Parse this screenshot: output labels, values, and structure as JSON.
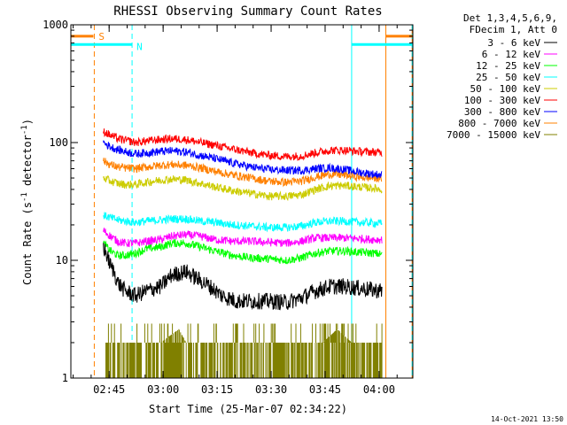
{
  "chart_data": {
    "type": "line",
    "title": "RHESSI Observing Summary Count Rates",
    "xlabel": "Start Time (25-Mar-07 02:34:22)",
    "ylabel": "Count Rate (s⁻¹ detector⁻¹)",
    "ylabel_parts": [
      "Count Rate (s",
      "-1",
      " detector",
      "-1",
      ")"
    ],
    "y_scale": "log",
    "ylim": [
      1,
      1000
    ],
    "xlim_minutes": [
      0,
      95
    ],
    "x_ticks": [
      {
        "minute": 10.63,
        "label": "02:45"
      },
      {
        "minute": 25.63,
        "label": "03:00"
      },
      {
        "minute": 40.63,
        "label": "03:15"
      },
      {
        "minute": 55.63,
        "label": "03:30"
      },
      {
        "minute": 70.63,
        "label": "03:45"
      },
      {
        "minute": 85.63,
        "label": "04:00"
      }
    ],
    "y_ticks": [
      {
        "value": 1,
        "label": "1"
      },
      {
        "value": 10,
        "label": "10"
      },
      {
        "value": 100,
        "label": "100"
      },
      {
        "value": 1000,
        "label": "1000"
      }
    ],
    "legend_header": [
      "Det 1,3,4,5,6,9,",
      "FDecim 1, Att 0"
    ],
    "series": [
      {
        "name": "3 - 6 keV",
        "color": "#000000",
        "points": [
          [
            9,
            13
          ],
          [
            10,
            11
          ],
          [
            11,
            9
          ],
          [
            12,
            8
          ],
          [
            13,
            6.5
          ],
          [
            15,
            5.5
          ],
          [
            18,
            5
          ],
          [
            21,
            5.5
          ],
          [
            25,
            6
          ],
          [
            28,
            7.5
          ],
          [
            32,
            8
          ],
          [
            35,
            7
          ],
          [
            38,
            6.2
          ],
          [
            42,
            5
          ],
          [
            46,
            4.5
          ],
          [
            50,
            4.5
          ],
          [
            55,
            4.5
          ],
          [
            60,
            4.4
          ],
          [
            64,
            4.8
          ],
          [
            68,
            5.5
          ],
          [
            72,
            6
          ],
          [
            76,
            6
          ],
          [
            80,
            5.8
          ],
          [
            84,
            5.6
          ],
          [
            86.5,
            5.5
          ]
        ]
      },
      {
        "name": "6 - 12 keV",
        "color": "#ff00ff",
        "points": [
          [
            9,
            18
          ],
          [
            11,
            16
          ],
          [
            13,
            14.5
          ],
          [
            15,
            14
          ],
          [
            18,
            14
          ],
          [
            21,
            14.5
          ],
          [
            25,
            15
          ],
          [
            28,
            16
          ],
          [
            32,
            16.5
          ],
          [
            36,
            16
          ],
          [
            40,
            15
          ],
          [
            45,
            14.5
          ],
          [
            50,
            14.5
          ],
          [
            55,
            14.2
          ],
          [
            60,
            14
          ],
          [
            64,
            14.5
          ],
          [
            68,
            15.5
          ],
          [
            72,
            15.5
          ],
          [
            76,
            15.5
          ],
          [
            80,
            15.3
          ],
          [
            84,
            15
          ],
          [
            86.5,
            15
          ]
        ]
      },
      {
        "name": "12 - 25 keV",
        "color": "#00ff00",
        "points": [
          [
            9,
            14
          ],
          [
            11,
            12
          ],
          [
            13,
            11
          ],
          [
            15,
            11
          ],
          [
            18,
            11.5
          ],
          [
            21,
            12.5
          ],
          [
            25,
            13
          ],
          [
            28,
            14
          ],
          [
            32,
            14
          ],
          [
            36,
            13
          ],
          [
            40,
            12
          ],
          [
            45,
            11
          ],
          [
            50,
            10.5
          ],
          [
            55,
            10.3
          ],
          [
            60,
            10
          ],
          [
            64,
            10.5
          ],
          [
            68,
            11.5
          ],
          [
            72,
            12
          ],
          [
            76,
            12
          ],
          [
            80,
            11.7
          ],
          [
            84,
            11.5
          ],
          [
            86.5,
            11.2
          ]
        ]
      },
      {
        "name": "25 - 50 keV",
        "color": "#00ffff",
        "points": [
          [
            9,
            24
          ],
          [
            11,
            23
          ],
          [
            13,
            22
          ],
          [
            15,
            21.5
          ],
          [
            18,
            21
          ],
          [
            21,
            21.5
          ],
          [
            25,
            22
          ],
          [
            28,
            22.5
          ],
          [
            32,
            22.5
          ],
          [
            36,
            21.5
          ],
          [
            40,
            21
          ],
          [
            45,
            20
          ],
          [
            50,
            19.5
          ],
          [
            55,
            19
          ],
          [
            60,
            19
          ],
          [
            64,
            19.5
          ],
          [
            68,
            21
          ],
          [
            72,
            21.5
          ],
          [
            76,
            21.5
          ],
          [
            80,
            21
          ],
          [
            84,
            20.8
          ],
          [
            86.5,
            20.5
          ]
        ]
      },
      {
        "name": "50 - 100 keV",
        "color": "#cccc00",
        "points": [
          [
            9,
            50
          ],
          [
            11,
            47
          ],
          [
            13,
            45
          ],
          [
            15,
            44
          ],
          [
            18,
            44
          ],
          [
            21,
            46
          ],
          [
            25,
            48
          ],
          [
            28,
            49
          ],
          [
            32,
            48
          ],
          [
            36,
            45
          ],
          [
            40,
            42
          ],
          [
            45,
            39
          ],
          [
            50,
            37
          ],
          [
            55,
            35
          ],
          [
            60,
            35
          ],
          [
            64,
            36
          ],
          [
            68,
            40
          ],
          [
            72,
            43
          ],
          [
            76,
            43
          ],
          [
            80,
            42
          ],
          [
            84,
            41
          ],
          [
            86.5,
            40
          ]
        ]
      },
      {
        "name": "100 - 300 keV",
        "color": "#ff0000",
        "points": [
          [
            9,
            125
          ],
          [
            11,
            115
          ],
          [
            13,
            108
          ],
          [
            15,
            105
          ],
          [
            18,
            100
          ],
          [
            21,
            103
          ],
          [
            25,
            106
          ],
          [
            28,
            108
          ],
          [
            32,
            106
          ],
          [
            36,
            100
          ],
          [
            40,
            95
          ],
          [
            45,
            88
          ],
          [
            50,
            82
          ],
          [
            55,
            78
          ],
          [
            60,
            76
          ],
          [
            64,
            77
          ],
          [
            68,
            82
          ],
          [
            72,
            86
          ],
          [
            76,
            86
          ],
          [
            80,
            84
          ],
          [
            84,
            83
          ],
          [
            86.5,
            82
          ]
        ]
      },
      {
        "name": "300 - 800 keV",
        "color": "#0000ff",
        "points": [
          [
            9,
            100
          ],
          [
            11,
            92
          ],
          [
            13,
            87
          ],
          [
            15,
            84
          ],
          [
            18,
            80
          ],
          [
            21,
            82
          ],
          [
            25,
            84
          ],
          [
            28,
            85
          ],
          [
            32,
            83
          ],
          [
            36,
            78
          ],
          [
            40,
            73
          ],
          [
            45,
            67
          ],
          [
            50,
            62
          ],
          [
            55,
            59
          ],
          [
            60,
            58
          ],
          [
            64,
            58
          ],
          [
            68,
            60
          ],
          [
            72,
            61
          ],
          [
            76,
            59
          ],
          [
            80,
            56
          ],
          [
            84,
            54
          ],
          [
            86.5,
            53
          ]
        ]
      },
      {
        "name": "800 - 7000 keV",
        "color": "#ff8000",
        "points": [
          [
            9,
            70
          ],
          [
            11,
            65
          ],
          [
            13,
            62
          ],
          [
            15,
            61
          ],
          [
            18,
            60
          ],
          [
            21,
            62
          ],
          [
            25,
            64
          ],
          [
            28,
            65
          ],
          [
            32,
            64
          ],
          [
            36,
            61
          ],
          [
            40,
            57
          ],
          [
            45,
            53
          ],
          [
            50,
            50
          ],
          [
            55,
            47
          ],
          [
            60,
            46
          ],
          [
            64,
            47
          ],
          [
            68,
            51
          ],
          [
            72,
            54
          ],
          [
            76,
            53
          ],
          [
            80,
            51
          ],
          [
            84,
            50
          ],
          [
            86.5,
            50
          ]
        ]
      },
      {
        "name": "7000 - 15000 keV",
        "color": "#808000",
        "points": [
          [
            9,
            2
          ],
          [
            25,
            2
          ],
          [
            30,
            2.6
          ],
          [
            32,
            2
          ],
          [
            45,
            2
          ],
          [
            70,
            2
          ],
          [
            74,
            2.6
          ],
          [
            78,
            2
          ],
          [
            86.5,
            2
          ]
        ]
      }
    ],
    "markers": {
      "attenuator_S": {
        "label": "S",
        "color": "#ff8000",
        "minute": 6.5,
        "level": 800
      },
      "night_N": {
        "label": "N",
        "color": "#00ffff",
        "minute": 17.0,
        "level": 680
      },
      "vlines": [
        {
          "minute": 0.0,
          "color": "#00ffff",
          "style": "solid"
        },
        {
          "minute": 6.5,
          "color": "#ff8000",
          "style": "dashed"
        },
        {
          "minute": 17.0,
          "color": "#00ffff",
          "style": "dashed"
        },
        {
          "minute": 78.0,
          "color": "#00ffff",
          "style": "solid"
        },
        {
          "minute": 87.5,
          "color": "#ff8000",
          "style": "solid"
        },
        {
          "minute": 94.8,
          "color": "#ff8000",
          "style": "solid"
        },
        {
          "minute": 94.8,
          "color": "#00ffff",
          "style": "dashed"
        }
      ]
    }
  },
  "footer_timestamp": "14-Oct-2021 13:50"
}
